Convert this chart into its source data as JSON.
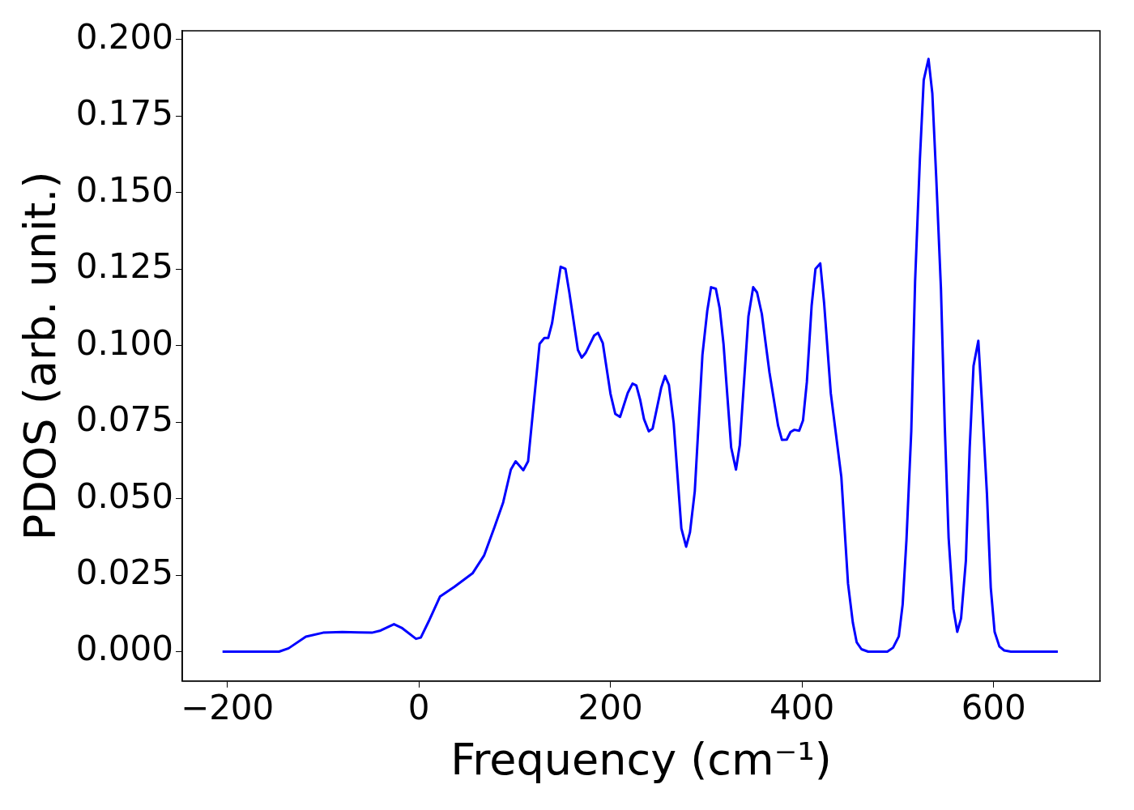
{
  "chart_data": {
    "type": "line",
    "xlabel": "Frequency (cm⁻¹)",
    "ylabel": "PDOS (arb. unit.)",
    "xlim": [
      -247,
      711
    ],
    "ylim": [
      -0.0096,
      0.2029
    ],
    "xticks": [
      {
        "value": -200,
        "label": "−200"
      },
      0,
      200,
      400,
      600
    ],
    "yticks": [
      {
        "value": 0,
        "label": "0.000"
      },
      {
        "value": 0.025,
        "label": "0.025"
      },
      {
        "value": 0.05,
        "label": "0.050"
      },
      {
        "value": 0.075,
        "label": "0.075"
      },
      {
        "value": 0.1,
        "label": "0.100"
      },
      {
        "value": 0.125,
        "label": "0.125"
      },
      {
        "value": 0.15,
        "label": "0.150"
      },
      {
        "value": 0.175,
        "label": "0.175"
      },
      {
        "value": 0.2,
        "label": "0.200"
      }
    ],
    "grid": false,
    "legend": false,
    "marker": "none",
    "line_style": "solid",
    "series": [
      {
        "color": "#0000ff",
        "x": [
          -205,
          -146,
          -136,
          -118,
          -100,
          -80,
          -63,
          -49,
          -40,
          -26,
          -18,
          -3,
          2,
          11,
          22,
          37,
          56,
          68,
          79,
          88,
          96,
          101,
          109,
          114,
          126,
          131,
          135,
          139,
          148,
          153,
          157,
          166,
          170,
          174,
          183,
          187,
          192,
          200,
          205,
          210,
          218,
          223,
          227,
          231,
          235,
          240,
          244,
          253,
          257,
          261,
          266,
          274,
          279,
          283,
          288,
          296,
          301,
          305,
          310,
          314,
          318,
          326,
          331,
          335,
          344,
          349,
          353,
          358,
          366,
          375,
          379,
          384,
          388,
          392,
          397,
          401,
          405,
          410,
          414,
          419,
          423,
          430,
          441,
          448,
          453,
          457,
          462,
          469,
          489,
          495,
          501,
          505,
          509,
          514,
          518,
          523,
          527,
          532,
          536,
          540,
          545,
          549,
          553,
          558,
          562,
          566,
          571,
          575,
          579,
          584,
          588,
          593,
          597,
          601,
          606,
          611,
          618,
          667
        ],
        "values": [
          0,
          0,
          0.0011,
          0.0049,
          0.0062,
          0.0064,
          0.0063,
          0.0062,
          0.0069,
          0.009,
          0.0078,
          0.0042,
          0.0046,
          0.0104,
          0.018,
          0.0212,
          0.0256,
          0.0314,
          0.0408,
          0.0488,
          0.0595,
          0.0622,
          0.0593,
          0.0622,
          0.1006,
          0.1025,
          0.1025,
          0.1073,
          0.1258,
          0.1251,
          0.1175,
          0.0986,
          0.0961,
          0.0976,
          0.1033,
          0.1042,
          0.1008,
          0.0843,
          0.0777,
          0.0767,
          0.0845,
          0.0876,
          0.087,
          0.0823,
          0.076,
          0.072,
          0.0729,
          0.0863,
          0.0901,
          0.0872,
          0.0747,
          0.0403,
          0.0343,
          0.039,
          0.0524,
          0.097,
          0.1113,
          0.1191,
          0.1186,
          0.1122,
          0.1006,
          0.0667,
          0.0595,
          0.0676,
          0.1095,
          0.1191,
          0.1174,
          0.1104,
          0.0912,
          0.0738,
          0.0692,
          0.0693,
          0.0718,
          0.0725,
          0.0722,
          0.0756,
          0.0881,
          0.1131,
          0.1251,
          0.1269,
          0.114,
          0.0844,
          0.0571,
          0.0222,
          0.0095,
          0.0031,
          0.0008,
          0,
          0,
          0.0013,
          0.005,
          0.0154,
          0.0366,
          0.072,
          0.121,
          0.1609,
          0.1868,
          0.1937,
          0.1824,
          0.1554,
          0.1185,
          0.0734,
          0.0372,
          0.014,
          0.0065,
          0.0109,
          0.0297,
          0.0666,
          0.0934,
          0.1016,
          0.0803,
          0.0516,
          0.0209,
          0.0065,
          0.0017,
          0.0004,
          0,
          0
        ]
      }
    ]
  }
}
